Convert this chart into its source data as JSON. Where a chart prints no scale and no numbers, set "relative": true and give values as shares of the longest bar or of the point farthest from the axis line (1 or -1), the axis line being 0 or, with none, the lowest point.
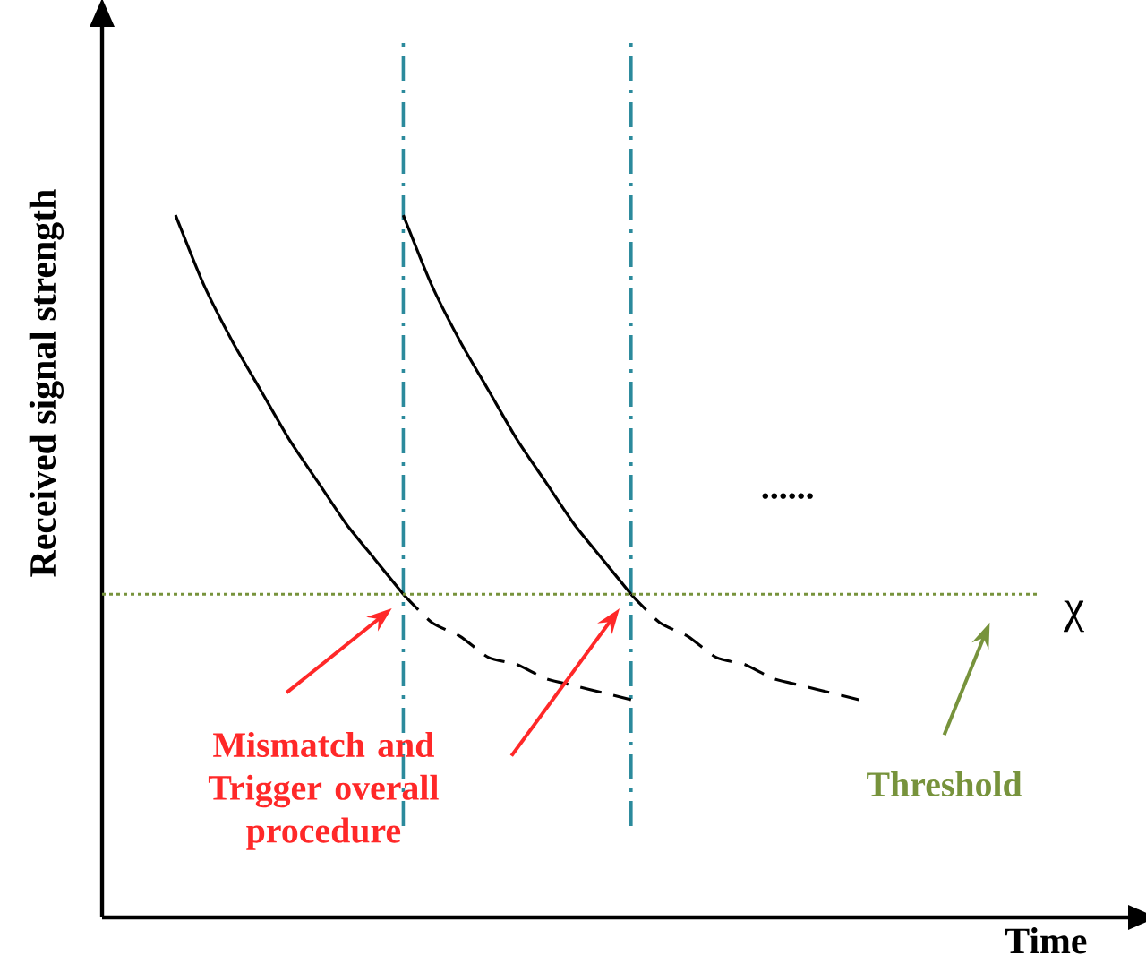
{
  "chart_data": {
    "type": "line",
    "relative": true,
    "xlabel": "Time",
    "ylabel": "Received signal strength",
    "categories": [
      null,
      null,
      null,
      null,
      null,
      null,
      null,
      null,
      null,
      null,
      null,
      null,
      null,
      null,
      null,
      null,
      null,
      null,
      null,
      null,
      null,
      null,
      null,
      null,
      null,
      null,
      null,
      null,
      null,
      null,
      null,
      null
    ],
    "series": [
      {
        "color": "#000000",
        "line_style": "solid",
        "values": [
          1.0,
          0.9,
          0.82,
          0.75,
          0.68,
          0.62,
          0.56,
          0.51,
          0.46,
          null,
          null,
          null,
          null,
          null,
          null,
          null,
          null,
          null,
          null,
          null,
          null,
          null,
          null,
          null,
          null,
          null,
          null,
          null,
          null,
          null,
          null,
          null
        ]
      },
      {
        "color": "#000000",
        "line_style": "dashed",
        "values": [
          null,
          null,
          null,
          null,
          null,
          null,
          null,
          null,
          0.46,
          0.42,
          0.4,
          0.37,
          0.36,
          0.34,
          0.33,
          0.32,
          0.31,
          null,
          null,
          null,
          null,
          null,
          null,
          null,
          null,
          null,
          null,
          null,
          null,
          null,
          null,
          null
        ]
      },
      {
        "color": "#000000",
        "line_style": "solid",
        "values": [
          null,
          null,
          null,
          null,
          null,
          null,
          null,
          null,
          1.0,
          0.9,
          0.82,
          0.75,
          0.68,
          0.62,
          0.56,
          0.51,
          0.46,
          null,
          null,
          null,
          null,
          null,
          null,
          null,
          null,
          null,
          null,
          null,
          null,
          null,
          null,
          null
        ]
      },
      {
        "color": "#000000",
        "line_style": "dashed",
        "values": [
          null,
          null,
          null,
          null,
          null,
          null,
          null,
          null,
          null,
          null,
          null,
          null,
          null,
          null,
          null,
          null,
          0.46,
          0.42,
          0.4,
          0.37,
          0.36,
          0.34,
          0.33,
          0.32,
          0.31,
          null,
          null,
          null,
          null,
          null,
          null,
          null
        ]
      }
    ],
    "ref_lines": [
      {
        "axis": "y",
        "value": 0.46,
        "label": "χ",
        "color": "#77933c",
        "line_style": "dotted"
      }
    ],
    "annotations": [
      "......",
      "Mismatch and Trigger overall procedure",
      "Threshold"
    ],
    "marker": "none"
  }
}
